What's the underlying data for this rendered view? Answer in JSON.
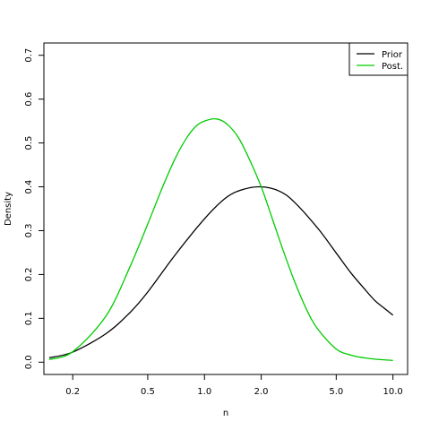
{
  "chart_data": {
    "type": "line",
    "title": "",
    "xlabel": "n",
    "ylabel": "Density",
    "x_scale": "log",
    "xlim": [
      0.1406,
      11.96
    ],
    "ylim": [
      -0.028,
      0.728
    ],
    "x_ticks": [
      0.2,
      0.5,
      1.0,
      2.0,
      5.0,
      10.0
    ],
    "x_tick_labels": [
      "0.2",
      "0.5",
      "1.0",
      "2.0",
      "5.0",
      "10.0"
    ],
    "y_ticks": [
      0.0,
      0.1,
      0.2,
      0.3,
      0.4,
      0.5,
      0.6,
      0.7
    ],
    "y_tick_labels": [
      "0.0",
      "0.1",
      "0.2",
      "0.3",
      "0.4",
      "0.5",
      "0.6",
      "0.7"
    ],
    "grid": false,
    "legend": {
      "placement": "top-right",
      "entries": [
        {
          "label": "Prior",
          "color": "#000000"
        },
        {
          "label": "Post.",
          "color": "#00cc00"
        }
      ]
    },
    "series": [
      {
        "name": "Prior",
        "color": "#000000",
        "x": [
          0.15,
          0.2,
          0.3,
          0.4,
          0.5,
          0.7,
          1.0,
          1.3,
          1.6,
          2.0,
          2.5,
          3.0,
          4.0,
          5.0,
          6.0,
          7.0,
          8.0,
          9.0,
          10.0
        ],
        "y": [
          0.01,
          0.023,
          0.065,
          0.112,
          0.16,
          0.245,
          0.327,
          0.375,
          0.394,
          0.4,
          0.39,
          0.365,
          0.305,
          0.249,
          0.203,
          0.169,
          0.141,
          0.123,
          0.107
        ]
      },
      {
        "name": "Post.",
        "color": "#00cc00",
        "x": [
          0.15,
          0.2,
          0.3,
          0.4,
          0.5,
          0.6,
          0.7,
          0.8,
          0.9,
          1.0,
          1.15,
          1.3,
          1.5,
          1.7,
          2.0,
          2.3,
          2.6,
          3.0,
          3.5,
          4.0,
          5.0,
          6.0,
          7.0,
          8.0,
          10.0
        ],
        "y": [
          0.006,
          0.024,
          0.105,
          0.215,
          0.315,
          0.4,
          0.465,
          0.51,
          0.538,
          0.55,
          0.555,
          0.545,
          0.515,
          0.47,
          0.4,
          0.325,
          0.258,
          0.185,
          0.118,
          0.075,
          0.03,
          0.016,
          0.01,
          0.007,
          0.004
        ]
      }
    ]
  }
}
